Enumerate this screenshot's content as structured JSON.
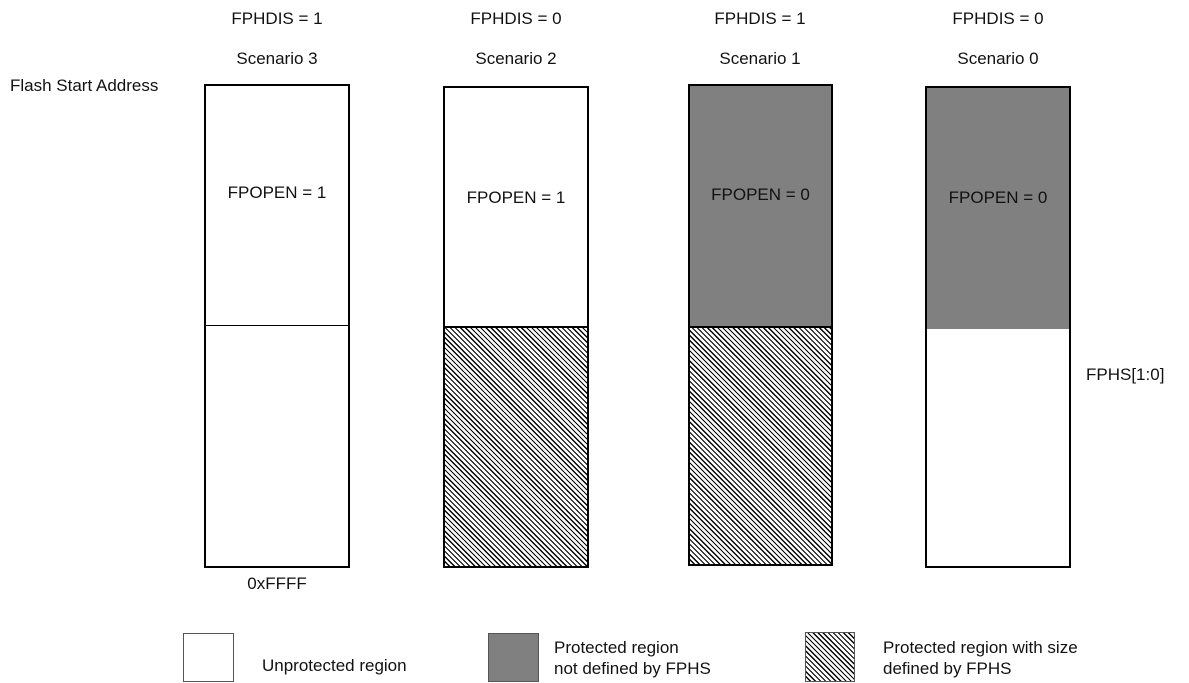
{
  "header": {
    "flash_start_label": "Flash Start Address",
    "end_address_label": "0xFFFF",
    "fphs_label": "FPHS[1:0]"
  },
  "scenarios": [
    {
      "fphdis": "FPHDIS = 1",
      "title": "Scenario 3",
      "fpopen": "FPOPEN = 1",
      "top_region": "unprotected",
      "bottom_region": "unprotected"
    },
    {
      "fphdis": "FPHDIS = 0",
      "title": "Scenario 2",
      "fpopen": "FPOPEN = 1",
      "top_region": "unprotected",
      "bottom_region": "protected-fphs"
    },
    {
      "fphdis": "FPHDIS = 1",
      "title": "Scenario 1",
      "fpopen": "FPOPEN = 0",
      "top_region": "protected",
      "bottom_region": "protected-fphs"
    },
    {
      "fphdis": "FPHDIS = 0",
      "title": "Scenario 0",
      "fpopen": "FPOPEN = 0",
      "top_region": "protected",
      "bottom_region": "unprotected"
    }
  ],
  "legend": {
    "unprotected": "Unprotected region",
    "protected_line1": "Protected region",
    "protected_line2": "not defined by FPHS",
    "fphs_line1": "Protected region with size",
    "fphs_line2": "defined by FPHS"
  },
  "colors": {
    "protected": "#808080",
    "unprotected": "#ffffff",
    "border": "#000000"
  }
}
